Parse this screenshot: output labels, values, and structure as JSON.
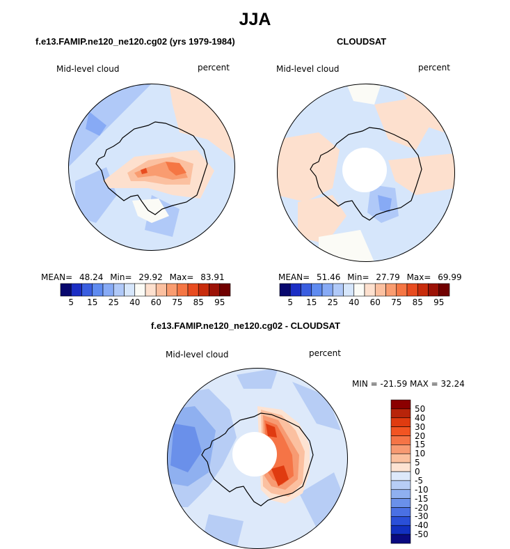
{
  "season_title": "JJA",
  "panels": [
    {
      "title": "f.e13.FAMIP.ne120_ne120.cg02 (yrs 1979-1984)",
      "variable": "Mid-level cloud",
      "units": "percent",
      "stats": {
        "mean_label": "MEAN=",
        "mean": "48.24",
        "min_label": "Min=",
        "min": "29.92",
        "max_label": "Max=",
        "max": "83.91"
      },
      "has_data_hole": false
    },
    {
      "title": "CLOUDSAT",
      "variable": "Mid-level cloud",
      "units": "percent",
      "stats": {
        "mean_label": "MEAN=",
        "mean": "51.46",
        "min_label": "Min=",
        "min": "27.79",
        "max_label": "Max=",
        "max": "69.99"
      },
      "has_data_hole": true
    }
  ],
  "abs_colorbar": {
    "tick_labels": [
      "5",
      "15",
      "25",
      "40",
      "60",
      "75",
      "85",
      "95"
    ],
    "colors": [
      "#08086e",
      "#1c2ec4",
      "#3a5ee0",
      "#5f8bf0",
      "#87aaf5",
      "#b0c9f8",
      "#d6e6fb",
      "#fbfbf6",
      "#fde0ce",
      "#fbc0a0",
      "#f99c70",
      "#f57644",
      "#e84c20",
      "#c82c0c",
      "#9c1206",
      "#700000"
    ]
  },
  "difference": {
    "title": "f.e13.FAMIP.ne120_ne120.cg02 - CLOUDSAT",
    "variable": "Mid-level cloud",
    "units": "percent",
    "stats_text": "MIN = -21.59 MAX =  32.24",
    "colorbar": {
      "tick_labels": [
        "50",
        "40",
        "30",
        "20",
        "15",
        "10",
        "5",
        "0",
        "-5",
        "-10",
        "-15",
        "-20",
        "-30",
        "-40",
        "-50"
      ],
      "colors": [
        "#8b0000",
        "#b8240a",
        "#e03b10",
        "#f25422",
        "#f57446",
        "#f79a72",
        "#fbc09e",
        "#fde3d2",
        "#dde9fa",
        "#b7cdf5",
        "#8fb0f0",
        "#6a90ea",
        "#4a70e4",
        "#2a4fd8",
        "#1230c0",
        "#0a0a80"
      ]
    }
  }
}
